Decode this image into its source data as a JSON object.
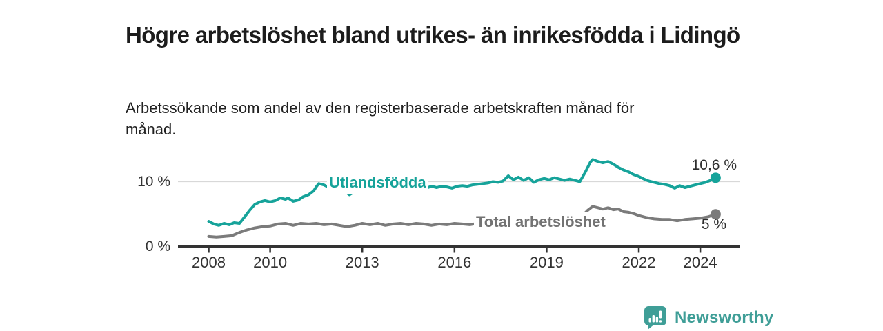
{
  "header": {
    "title": "Högre arbetslöshet bland utrikes- än inrikesfödda i Lidingö",
    "subtitle": "Arbetssökande som andel av den registerbaserade arbetskraften månad för månad."
  },
  "chart_data": {
    "type": "line",
    "title": "Högre arbetslöshet bland utrikes- än inrikesfödda i Lidingö",
    "subtitle": "Arbetssökande som andel av den registerbaserade arbetskraften månad för månad.",
    "x_unit": "year-month",
    "xlim": [
      2007,
      2025.3
    ],
    "ylim": [
      0,
      14
    ],
    "grid": "horizontal, only at 10 %",
    "grid_color": "#d8d8d8",
    "axis_color": "#333333",
    "x_ticks": [
      {
        "value": 2008,
        "label": "2008"
      },
      {
        "value": 2010,
        "label": "2010"
      },
      {
        "value": 2013,
        "label": "2013"
      },
      {
        "value": 2016,
        "label": "2016"
      },
      {
        "value": 2019,
        "label": "2019"
      },
      {
        "value": 2022,
        "label": "2022"
      },
      {
        "value": 2024,
        "label": "2024"
      }
    ],
    "y_ticks": [
      {
        "value": 0,
        "label": "0 %"
      },
      {
        "value": 10,
        "label": "10 %"
      }
    ],
    "legend_position": "inline labels on lines, value labels at line ends",
    "series": [
      {
        "name": "Utlandsfödda",
        "color": "#16a39a",
        "end_label": "10,6 %",
        "end_value": 10.6,
        "points": [
          [
            2008.0,
            3.9
          ],
          [
            2008.17,
            3.5
          ],
          [
            2008.33,
            3.3
          ],
          [
            2008.5,
            3.6
          ],
          [
            2008.67,
            3.4
          ],
          [
            2008.83,
            3.7
          ],
          [
            2009.0,
            3.6
          ],
          [
            2009.17,
            4.6
          ],
          [
            2009.33,
            5.6
          ],
          [
            2009.5,
            6.5
          ],
          [
            2009.67,
            6.9
          ],
          [
            2009.83,
            7.1
          ],
          [
            2010.0,
            6.9
          ],
          [
            2010.17,
            7.1
          ],
          [
            2010.33,
            7.5
          ],
          [
            2010.5,
            7.3
          ],
          [
            2010.58,
            7.5
          ],
          [
            2010.75,
            7.0
          ],
          [
            2010.92,
            7.2
          ],
          [
            2011.08,
            7.7
          ],
          [
            2011.25,
            8.0
          ],
          [
            2011.42,
            8.6
          ],
          [
            2011.5,
            9.2
          ],
          [
            2011.58,
            9.7
          ],
          [
            2011.75,
            9.5
          ],
          [
            2011.92,
            9.1
          ],
          [
            2012.08,
            8.7
          ],
          [
            2012.25,
            8.3
          ],
          [
            2012.42,
            8.6
          ],
          [
            2012.58,
            8.0
          ],
          [
            2012.75,
            8.5
          ],
          [
            2012.92,
            8.6
          ],
          [
            2013.08,
            8.6
          ],
          [
            2013.25,
            8.5
          ],
          [
            2013.42,
            8.7
          ],
          [
            2013.58,
            8.6
          ],
          [
            2013.75,
            8.8
          ],
          [
            2013.92,
            8.7
          ],
          [
            2014.08,
            8.9
          ],
          [
            2014.25,
            9.0
          ],
          [
            2014.42,
            8.8
          ],
          [
            2014.58,
            9.1
          ],
          [
            2014.75,
            9.0
          ],
          [
            2014.92,
            9.2
          ],
          [
            2015.08,
            9.0
          ],
          [
            2015.25,
            9.3
          ],
          [
            2015.42,
            9.1
          ],
          [
            2015.58,
            9.3
          ],
          [
            2015.75,
            9.2
          ],
          [
            2015.92,
            9.0
          ],
          [
            2016.08,
            9.3
          ],
          [
            2016.25,
            9.4
          ],
          [
            2016.42,
            9.3
          ],
          [
            2016.58,
            9.5
          ],
          [
            2016.75,
            9.6
          ],
          [
            2016.92,
            9.7
          ],
          [
            2017.08,
            9.8
          ],
          [
            2017.25,
            10.0
          ],
          [
            2017.42,
            9.9
          ],
          [
            2017.58,
            10.1
          ],
          [
            2017.75,
            10.9
          ],
          [
            2017.92,
            10.3
          ],
          [
            2018.08,
            10.7
          ],
          [
            2018.25,
            10.2
          ],
          [
            2018.42,
            10.6
          ],
          [
            2018.58,
            9.9
          ],
          [
            2018.75,
            10.3
          ],
          [
            2018.92,
            10.5
          ],
          [
            2019.08,
            10.3
          ],
          [
            2019.25,
            10.6
          ],
          [
            2019.42,
            10.4
          ],
          [
            2019.58,
            10.2
          ],
          [
            2019.75,
            10.4
          ],
          [
            2019.92,
            10.2
          ],
          [
            2020.08,
            10.0
          ],
          [
            2020.25,
            11.4
          ],
          [
            2020.42,
            13.0
          ],
          [
            2020.5,
            13.4
          ],
          [
            2020.67,
            13.1
          ],
          [
            2020.83,
            12.9
          ],
          [
            2021.0,
            13.1
          ],
          [
            2021.17,
            12.7
          ],
          [
            2021.33,
            12.2
          ],
          [
            2021.5,
            11.8
          ],
          [
            2021.67,
            11.5
          ],
          [
            2021.83,
            11.1
          ],
          [
            2022.0,
            10.8
          ],
          [
            2022.17,
            10.4
          ],
          [
            2022.33,
            10.1
          ],
          [
            2022.5,
            9.9
          ],
          [
            2022.67,
            9.7
          ],
          [
            2022.83,
            9.6
          ],
          [
            2023.0,
            9.4
          ],
          [
            2023.17,
            9.0
          ],
          [
            2023.33,
            9.4
          ],
          [
            2023.5,
            9.1
          ],
          [
            2023.67,
            9.3
          ],
          [
            2023.83,
            9.5
          ],
          [
            2024.0,
            9.7
          ],
          [
            2024.17,
            9.9
          ],
          [
            2024.33,
            10.2
          ],
          [
            2024.5,
            10.6
          ]
        ]
      },
      {
        "name": "Total arbetslöshet",
        "color": "#7b7b7b",
        "end_label": "5 %",
        "end_value": 5.0,
        "points": [
          [
            2008.0,
            1.6
          ],
          [
            2008.25,
            1.5
          ],
          [
            2008.5,
            1.6
          ],
          [
            2008.75,
            1.7
          ],
          [
            2009.0,
            2.2
          ],
          [
            2009.25,
            2.6
          ],
          [
            2009.5,
            2.9
          ],
          [
            2009.75,
            3.1
          ],
          [
            2010.0,
            3.2
          ],
          [
            2010.25,
            3.5
          ],
          [
            2010.5,
            3.6
          ],
          [
            2010.75,
            3.3
          ],
          [
            2011.0,
            3.6
          ],
          [
            2011.25,
            3.5
          ],
          [
            2011.5,
            3.6
          ],
          [
            2011.75,
            3.4
          ],
          [
            2012.0,
            3.5
          ],
          [
            2012.25,
            3.3
          ],
          [
            2012.5,
            3.1
          ],
          [
            2012.75,
            3.3
          ],
          [
            2013.0,
            3.6
          ],
          [
            2013.25,
            3.4
          ],
          [
            2013.5,
            3.6
          ],
          [
            2013.75,
            3.3
          ],
          [
            2014.0,
            3.5
          ],
          [
            2014.25,
            3.6
          ],
          [
            2014.5,
            3.4
          ],
          [
            2014.75,
            3.6
          ],
          [
            2015.0,
            3.5
          ],
          [
            2015.25,
            3.3
          ],
          [
            2015.5,
            3.5
          ],
          [
            2015.75,
            3.4
          ],
          [
            2016.0,
            3.6
          ],
          [
            2016.25,
            3.5
          ],
          [
            2016.5,
            3.4
          ],
          [
            2016.75,
            3.6
          ],
          [
            2017.0,
            3.7
          ],
          [
            2017.25,
            3.6
          ],
          [
            2017.5,
            3.8
          ],
          [
            2017.75,
            3.7
          ],
          [
            2018.0,
            3.8
          ],
          [
            2018.25,
            3.7
          ],
          [
            2018.5,
            3.8
          ],
          [
            2018.75,
            3.9
          ],
          [
            2019.0,
            3.8
          ],
          [
            2019.25,
            3.9
          ],
          [
            2019.5,
            4.0
          ],
          [
            2019.75,
            3.9
          ],
          [
            2020.0,
            4.1
          ],
          [
            2020.17,
            4.8
          ],
          [
            2020.33,
            5.6
          ],
          [
            2020.5,
            6.2
          ],
          [
            2020.67,
            6.0
          ],
          [
            2020.83,
            5.8
          ],
          [
            2021.0,
            6.0
          ],
          [
            2021.17,
            5.7
          ],
          [
            2021.33,
            5.8
          ],
          [
            2021.5,
            5.4
          ],
          [
            2021.67,
            5.3
          ],
          [
            2021.83,
            5.1
          ],
          [
            2022.0,
            4.8
          ],
          [
            2022.25,
            4.5
          ],
          [
            2022.5,
            4.3
          ],
          [
            2022.75,
            4.2
          ],
          [
            2023.0,
            4.2
          ],
          [
            2023.25,
            4.0
          ],
          [
            2023.5,
            4.2
          ],
          [
            2023.75,
            4.3
          ],
          [
            2024.0,
            4.4
          ],
          [
            2024.25,
            4.6
          ],
          [
            2024.5,
            5.0
          ]
        ]
      }
    ]
  },
  "footer": {
    "brand": "Newsworthy",
    "brand_color": "#3f9e97"
  }
}
